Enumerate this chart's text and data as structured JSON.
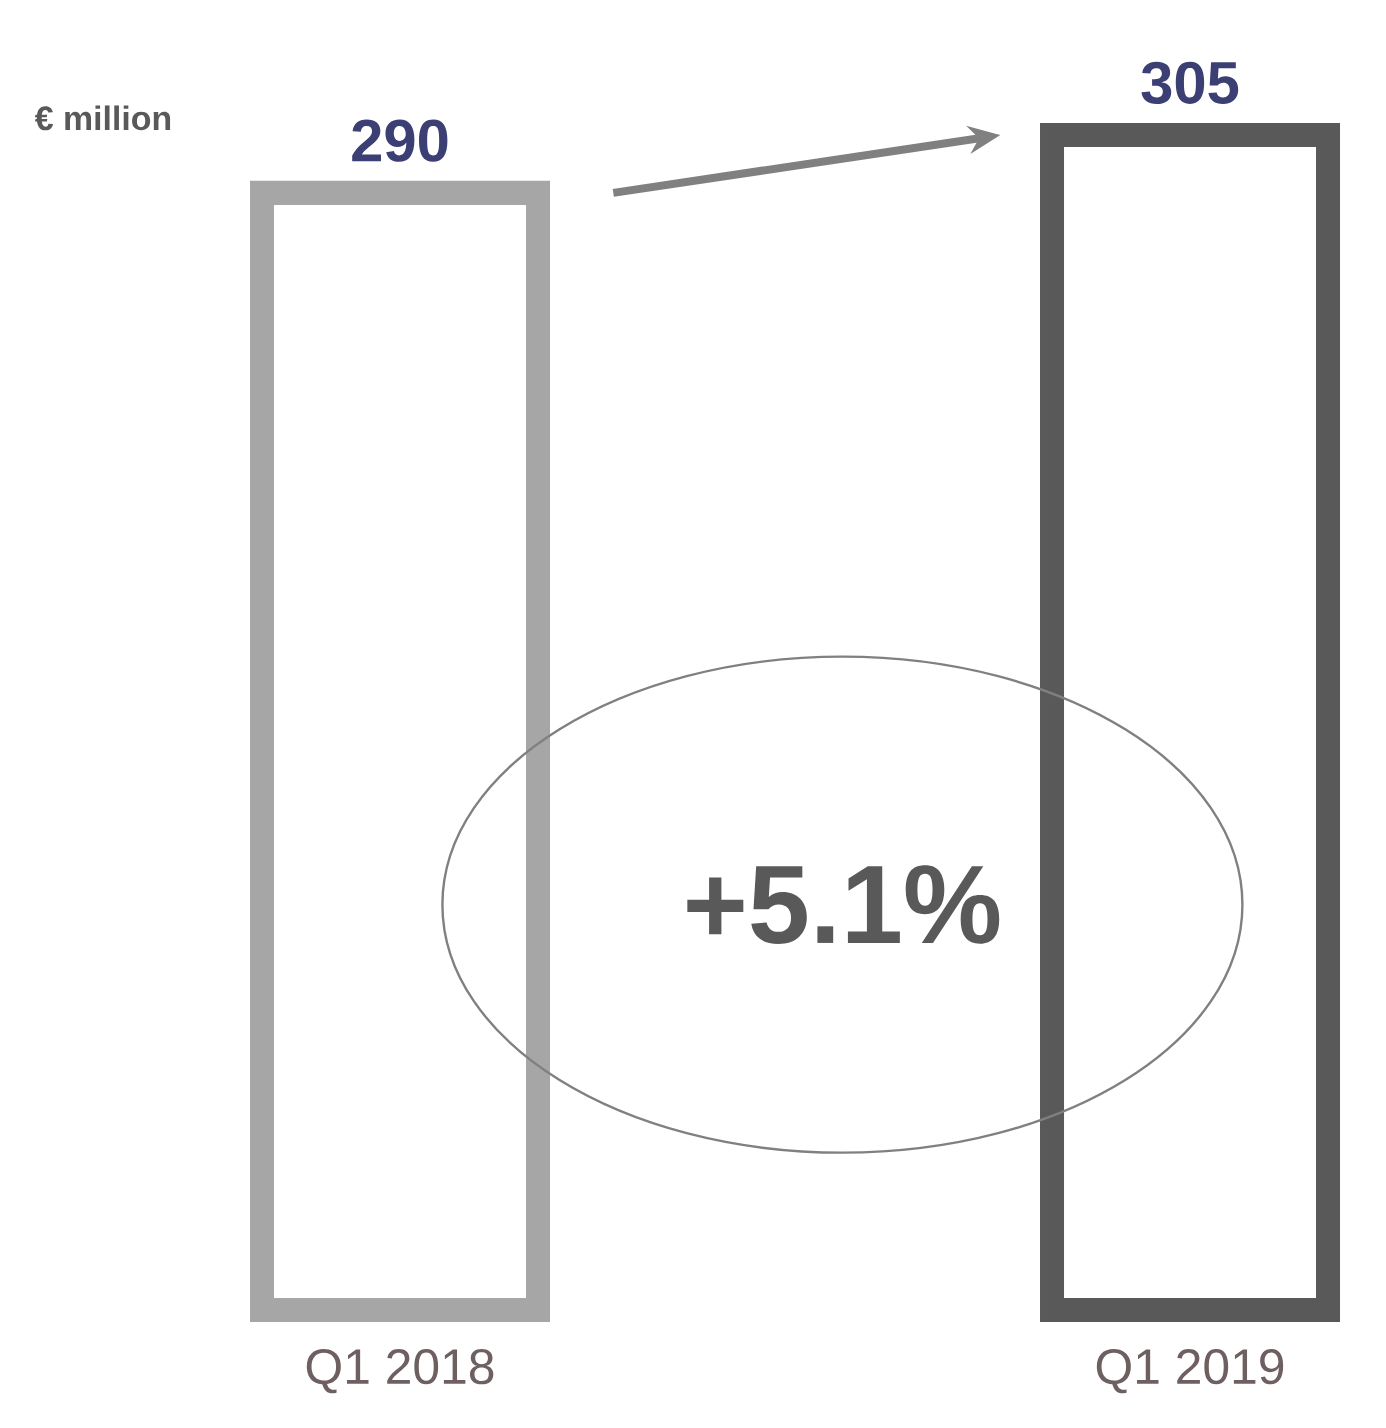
{
  "chart_data": {
    "type": "bar",
    "ylabel": "€ million",
    "categories": [
      "Q1 2018",
      "Q1 2019"
    ],
    "values": [
      290,
      305
    ],
    "colors": [
      "#a6a6a6",
      "#595959"
    ],
    "data_labels": true,
    "annotations": [
      "+5.1%"
    ]
  }
}
